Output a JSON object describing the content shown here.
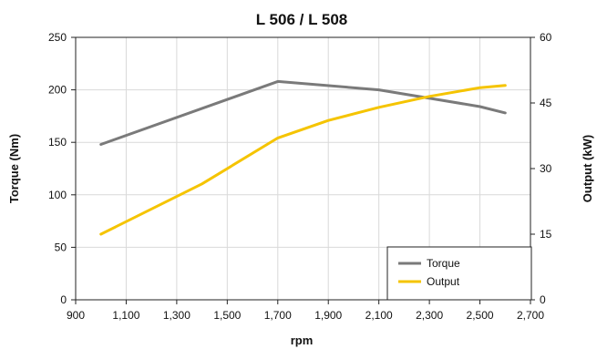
{
  "chart_data": {
    "type": "line",
    "title": "L 506 / L 508",
    "xlabel": "rpm",
    "ylabel_left": "Torque (Nm)",
    "ylabel_right": "Output (kW)",
    "xlim": [
      900,
      2700
    ],
    "ylim_left": [
      0,
      250
    ],
    "ylim_right": [
      0,
      60
    ],
    "x_ticks": [
      900,
      1100,
      1300,
      1500,
      1700,
      1900,
      2100,
      2300,
      2500,
      2700
    ],
    "x_tick_labels": [
      "900",
      "1,100",
      "1,300",
      "1,500",
      "1,700",
      "1,900",
      "2,100",
      "2,300",
      "2,500",
      "2,700"
    ],
    "y_left_ticks": [
      0,
      50,
      100,
      150,
      200,
      250
    ],
    "y_left_tick_labels": [
      "0",
      "50",
      "100",
      "150",
      "200",
      "250"
    ],
    "y_right_ticks": [
      0,
      15,
      30,
      45,
      60
    ],
    "y_right_tick_labels": [
      "0",
      "15",
      "30",
      "45",
      "60"
    ],
    "grid": true,
    "legend_position": "bottom-right",
    "series": [
      {
        "name": "Torque",
        "axis": "left",
        "color": "#7a7a7a",
        "points": [
          [
            1000,
            148
          ],
          [
            1700,
            208
          ],
          [
            2100,
            200
          ],
          [
            2500,
            184
          ],
          [
            2600,
            178
          ]
        ]
      },
      {
        "name": "Output",
        "axis": "right",
        "color": "#f5c400",
        "points": [
          [
            1000,
            15
          ],
          [
            1400,
            26.5
          ],
          [
            1700,
            37
          ],
          [
            1900,
            41
          ],
          [
            2100,
            44
          ],
          [
            2300,
            46.5
          ],
          [
            2500,
            48.5
          ],
          [
            2600,
            49
          ]
        ]
      }
    ]
  }
}
